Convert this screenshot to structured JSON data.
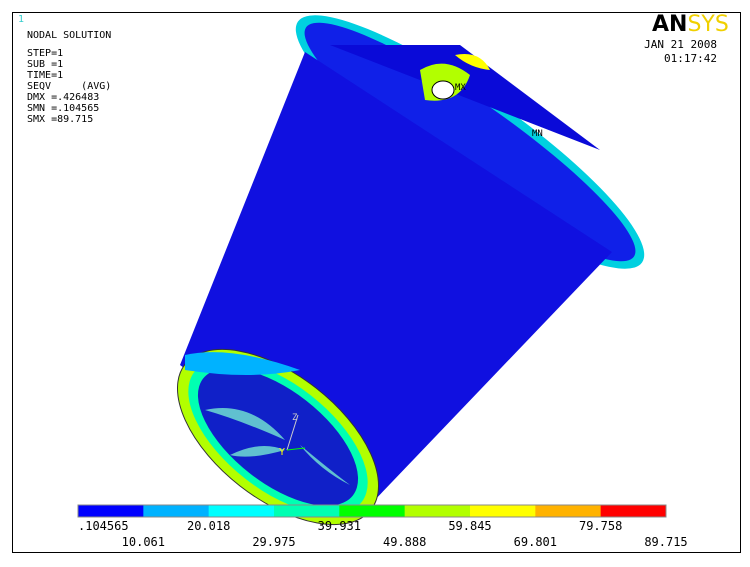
{
  "window_number": "1",
  "header": {
    "lines": [
      "NODAL SOLUTION",
      "STEP=1",
      "SUB =1",
      "TIME=1",
      "SEQV     (AVG)",
      "DMX =.426483",
      "SMN =.104565",
      "SMX =89.715"
    ]
  },
  "logo": {
    "dark": "AN",
    "light": "SYS"
  },
  "date": "JAN 21 2008",
  "time": "01:17:42",
  "markers": {
    "max": "MX",
    "min": "MN"
  },
  "triad": {
    "y": "Y",
    "z": "Z"
  },
  "legend": {
    "colors": [
      "#0000ff",
      "#00b2ff",
      "#00ffff",
      "#00ffb2",
      "#00ff00",
      "#b2ff00",
      "#ffff00",
      "#ffb200",
      "#ff0000"
    ],
    "labels": [
      ".104565",
      "10.061",
      "20.018",
      "29.975",
      "39.931",
      "49.888",
      "59.845",
      "69.801",
      "79.758",
      "89.715"
    ]
  }
}
